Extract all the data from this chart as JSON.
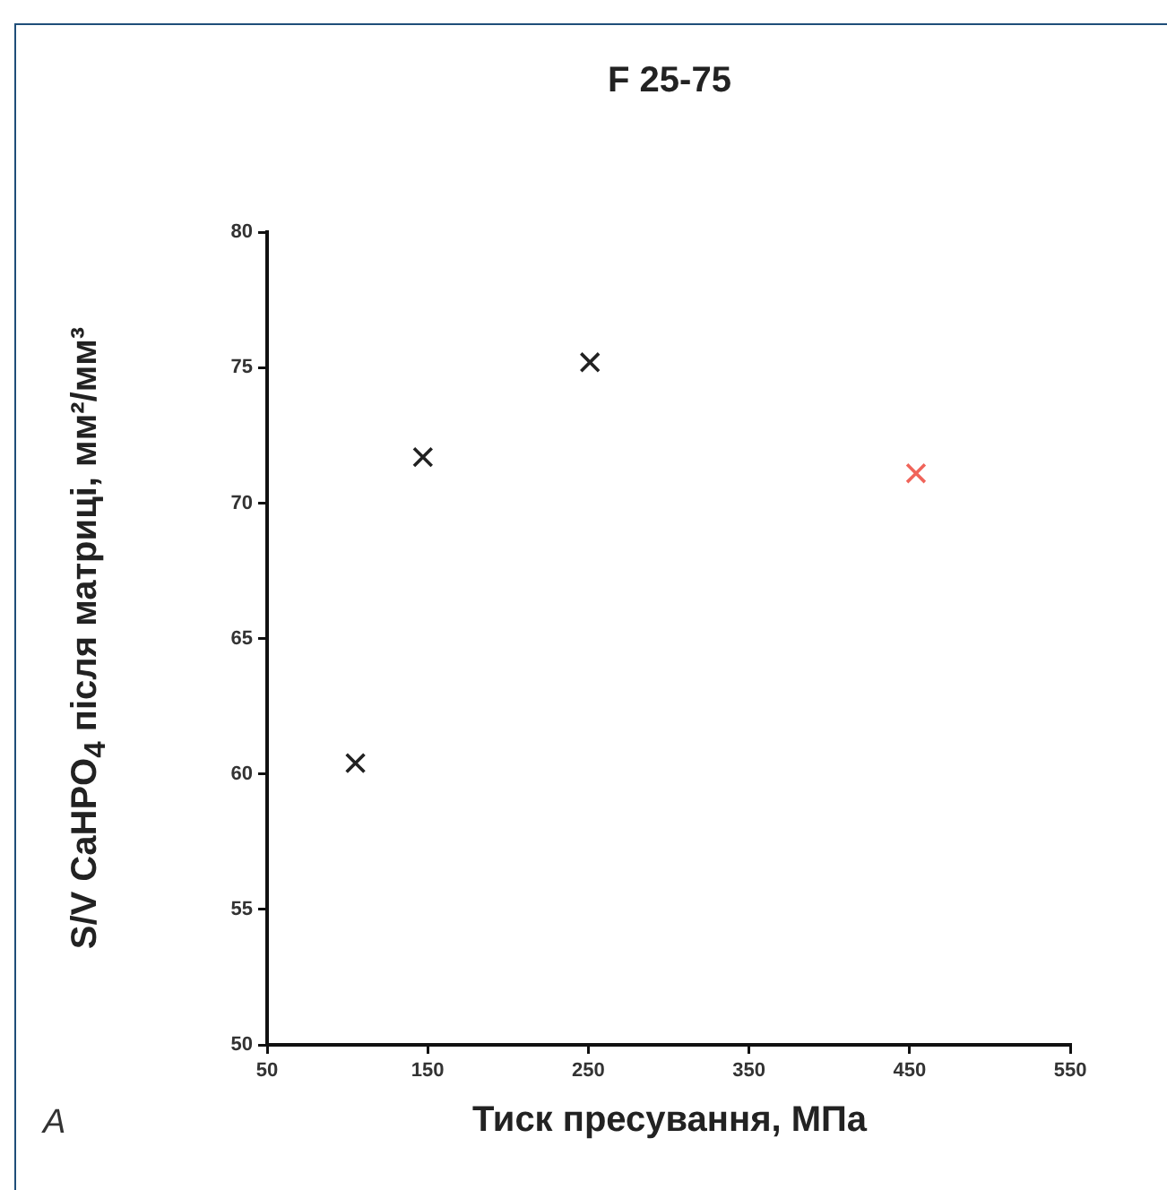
{
  "chart_data": {
    "type": "scatter",
    "title": "F 25-75",
    "xlabel": "Тиск пресування, МПа",
    "ylabel": "S/V CaHPO$_{4}$ після матриці, мм²/мм³",
    "annotations": [
      "A"
    ],
    "x": [
      105,
      147,
      251,
      454
    ],
    "values": [
      60.4,
      71.7,
      75.2,
      71.1
    ],
    "colors": [
      "#222222",
      "#222222",
      "#222222",
      "#f0645a"
    ],
    "marker": "cross",
    "xlim": [
      50,
      550
    ],
    "xticks": [
      50,
      150,
      250,
      350,
      450,
      550
    ],
    "ylim": [
      50,
      80
    ],
    "yticks": [
      50,
      55,
      60,
      65,
      70,
      75,
      80
    ],
    "grid": false,
    "legend": false
  }
}
